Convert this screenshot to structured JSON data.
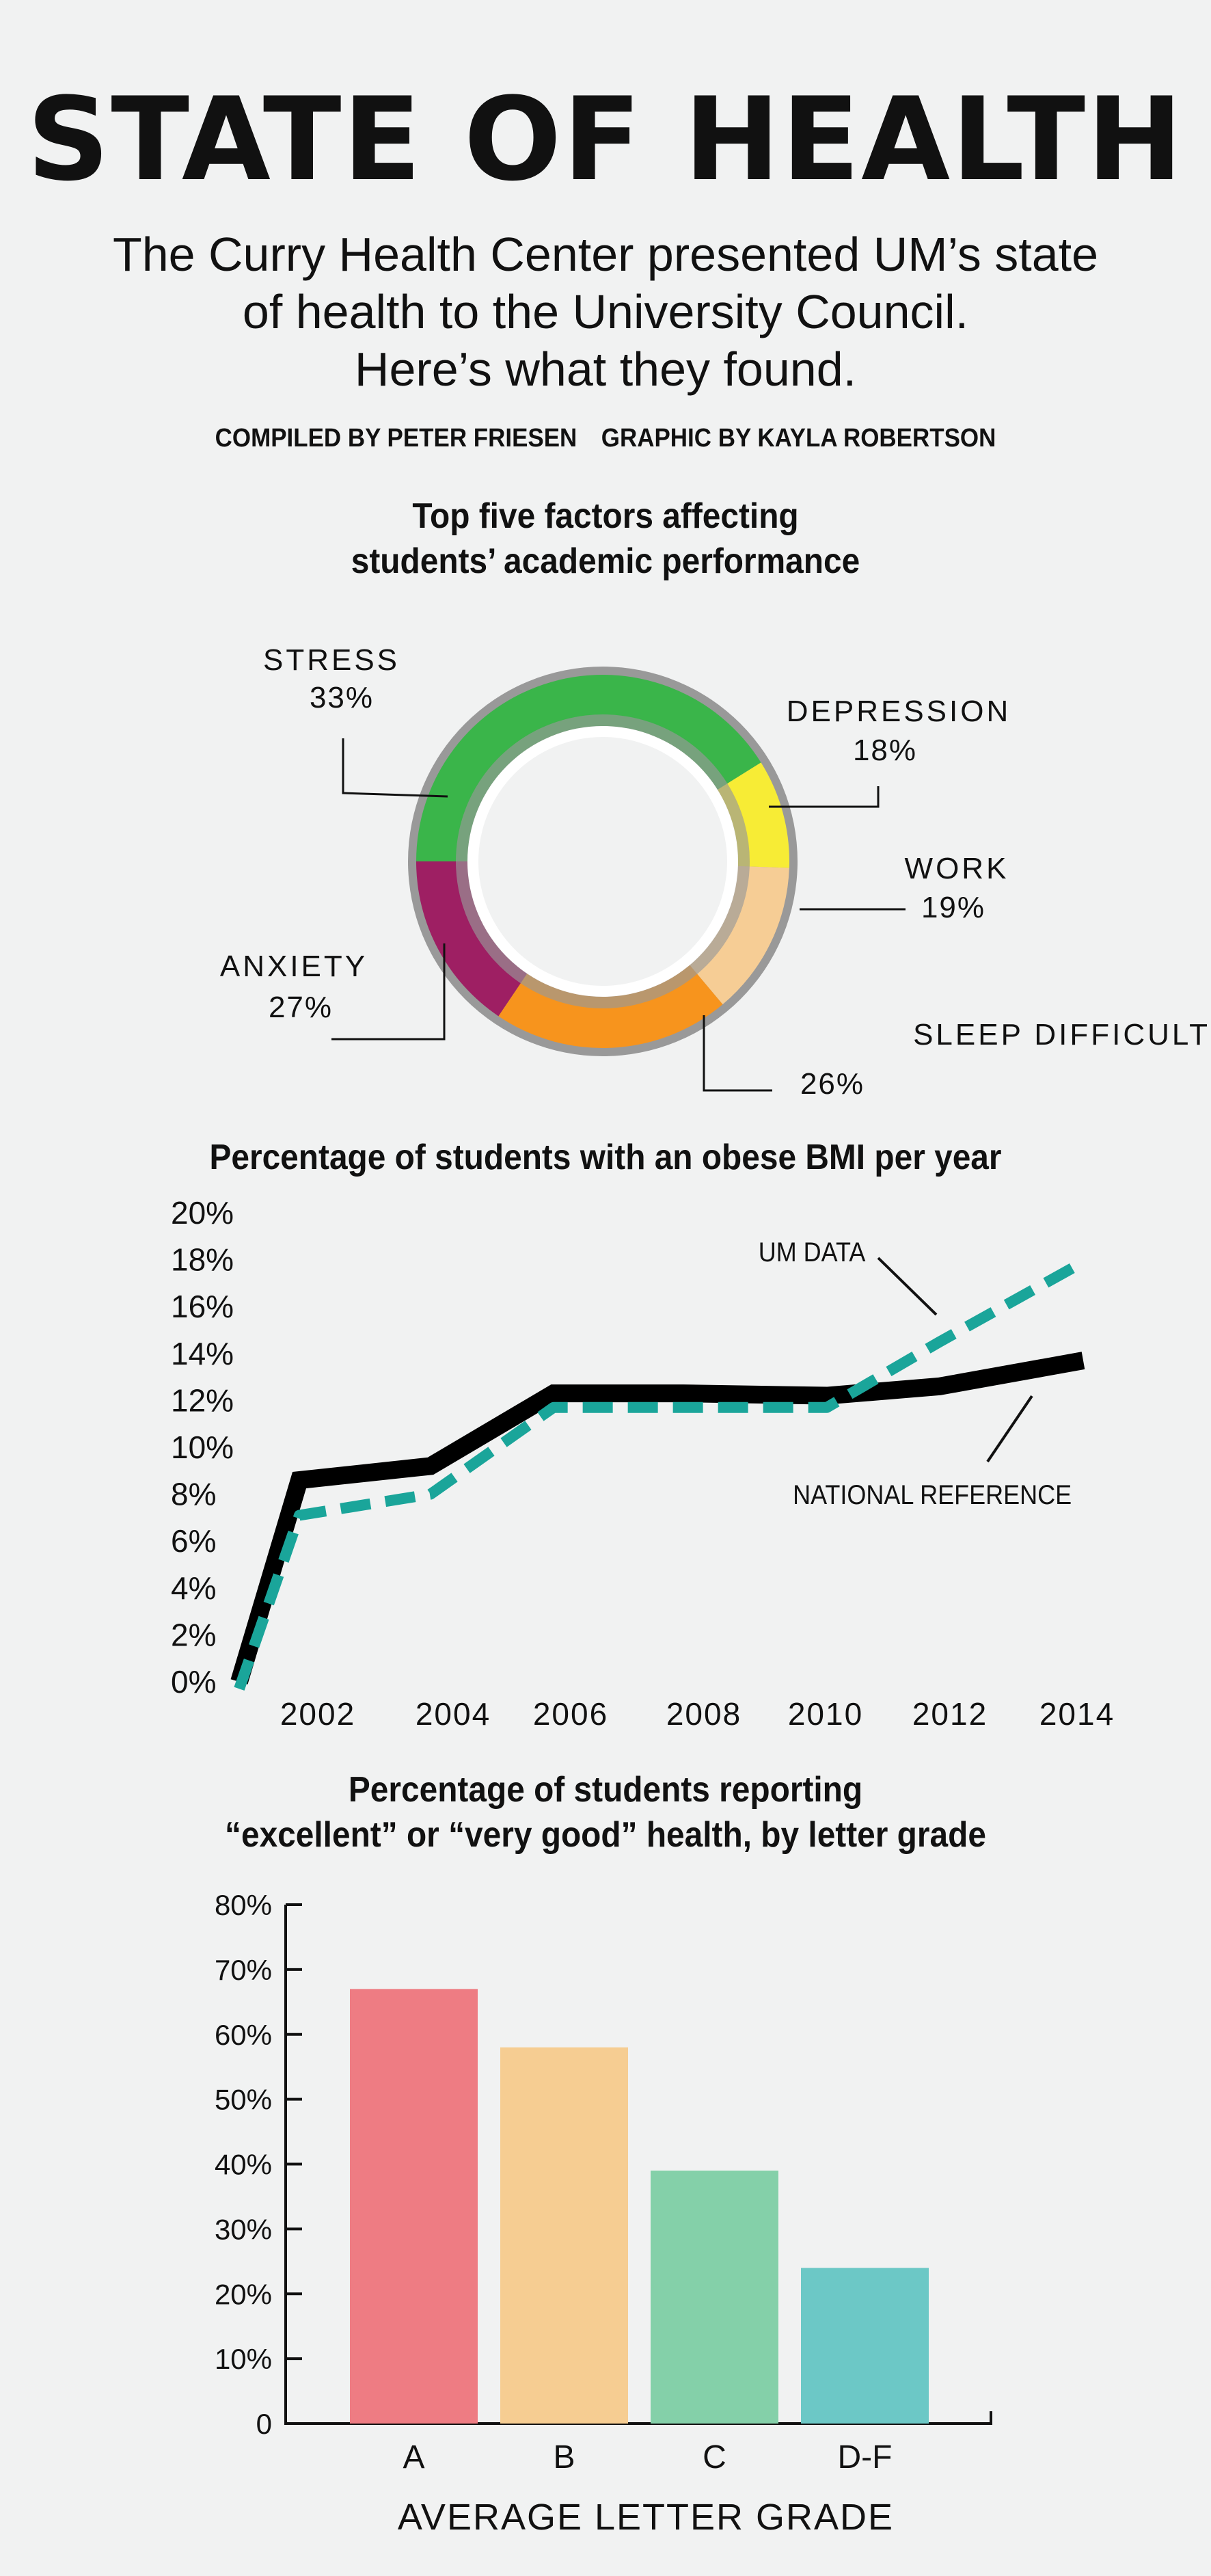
{
  "header": {
    "title": "STATE OF HEALTH",
    "intro_lines": [
      "The Curry Health Center presented UM’s state",
      "of health to the University Council.",
      "Here’s what they found."
    ],
    "credits": [
      "COMPILED BY PETER FRIESEN",
      "GRAPHIC BY KAYLA ROBERTSON"
    ]
  },
  "colors": {
    "background": "#f1f2f2",
    "stress": "#3ab54a",
    "depression": "#f7ec35",
    "work": "#f6cd95",
    "sleep": "#f7941d",
    "anxiety": "#9e1f63",
    "national": "#000000",
    "um": "#1aa59a",
    "bar_a": "#ee7c83",
    "bar_b": "#f6cd92",
    "bar_c": "#84d0a9",
    "bar_df": "#6cc8c6"
  },
  "chart_data": [
    {
      "type": "pie",
      "title_lines": [
        "Top five factors affecting",
        "students’ academic performance"
      ],
      "labels": [
        "STRESS",
        "DEPRESSION",
        "WORK",
        "SLEEP DIFFICULTIES",
        "ANXIETY"
      ],
      "values": [
        "33%",
        "18%",
        "19%",
        "26%",
        "27%"
      ]
    },
    {
      "type": "line",
      "title": "Percentage of students with an obese BMI per year",
      "x": [
        2001,
        2002,
        2004,
        2006,
        2008,
        2010,
        2012,
        2014
      ],
      "x_tick_labels": [
        "2002",
        "2004",
        "2006",
        "2008",
        "2010",
        "2012",
        "2014"
      ],
      "x_ticks": [
        2002,
        2004,
        2006,
        2008,
        2010,
        2012,
        2014
      ],
      "y_tick_labels": [
        "0%",
        "2%",
        "4%",
        "6%",
        "8%",
        "10%",
        "12%",
        "14%",
        "16%",
        "18%",
        "20%"
      ],
      "ylim": [
        0,
        20
      ],
      "xlim": [
        2001,
        2014
      ],
      "series": [
        {
          "name": "NATIONAL REFERENCE",
          "points": [
            [
              2001,
              0
            ],
            [
              2002,
              8.6
            ],
            [
              2004,
              9.2
            ],
            [
              2005.8,
              12.3
            ],
            [
              2008,
              12.3
            ],
            [
              2009.8,
              12.2
            ],
            [
              2012,
              12.6
            ],
            [
              2014,
              13.7
            ]
          ]
        },
        {
          "name": "UM DATA",
          "points": [
            [
              2001,
              -0.3
            ],
            [
              2002,
              7.1
            ],
            [
              2004,
              8.0
            ],
            [
              2005.8,
              11.7
            ],
            [
              2008,
              11.7
            ],
            [
              2009.8,
              11.7
            ],
            [
              2012,
              14.5
            ],
            [
              2014,
              17.9
            ]
          ]
        }
      ]
    },
    {
      "type": "bar",
      "title_lines": [
        "Percentage of students reporting",
        "“excellent” or “very good” health, by letter grade"
      ],
      "categories": [
        "A",
        "B",
        "C",
        "D-F"
      ],
      "values": [
        67,
        58,
        39,
        24
      ],
      "ylim": [
        0,
        80
      ],
      "y_tick_labels": [
        "0",
        "10%",
        "20%",
        "30%",
        "40%",
        "50%",
        "60%",
        "70%",
        "80%"
      ],
      "xlabel": "AVERAGE LETTER GRADE"
    }
  ]
}
